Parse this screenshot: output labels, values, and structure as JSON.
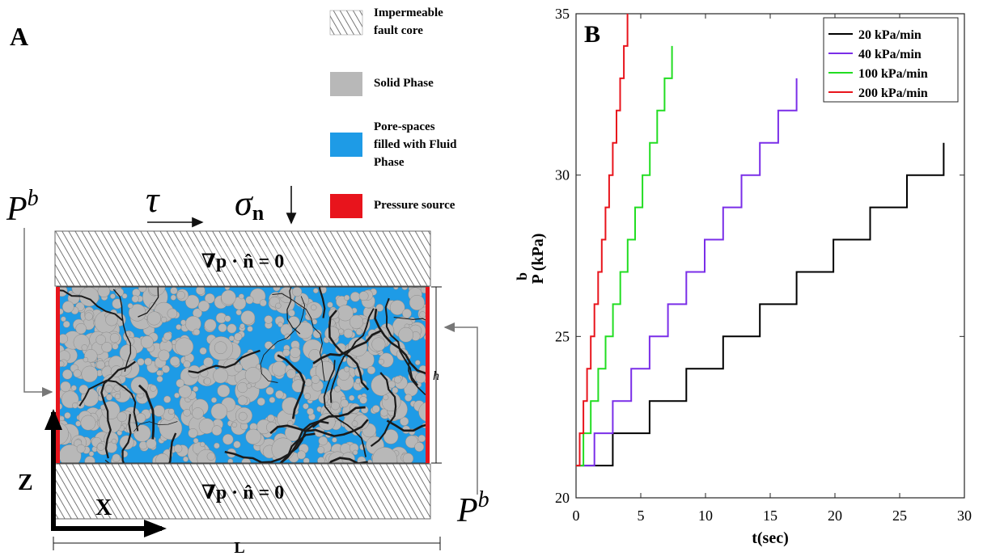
{
  "panel_a": {
    "label": "A",
    "legend": [
      {
        "lines": [
          "Impermeable",
          "fault core"
        ]
      },
      {
        "lines": [
          "Solid Phase"
        ]
      },
      {
        "lines": [
          "Pore-spaces",
          "filled with Fluid",
          "Phase"
        ]
      },
      {
        "lines": [
          "Pressure source"
        ]
      }
    ],
    "tau": "τ",
    "sigma": "σ",
    "sigma_sub": "n",
    "boundary_top": "∇p · n̂ = 0",
    "boundary_bottom": "∇p · n̂ = 0",
    "pb_left": "P",
    "pb_right": "P",
    "pb_sup": "b",
    "h": "h",
    "z": "Z",
    "x": "X",
    "L": "L",
    "colors": {
      "solid": "#b8b8b8",
      "fluid": "#1e9be6",
      "source": "#e8141c",
      "crack": "#1a1a1a"
    }
  },
  "chart_data": {
    "type": "line",
    "label": "B",
    "title": "",
    "xlabel": "t(sec)",
    "ylabel": "P",
    "ylabel_sup": "b",
    "ylabel_unit": "(kPa)",
    "xlim": [
      0,
      30
    ],
    "ylim": [
      20,
      35
    ],
    "xticks": [
      0,
      5,
      10,
      15,
      20,
      25,
      30
    ],
    "yticks": [
      20,
      25,
      30,
      35
    ],
    "grid": false,
    "legend_position": "top-right",
    "series": [
      {
        "name": "20 kPa/min",
        "color": "#000000",
        "start": 21,
        "end": 31,
        "dt": 2.84
      },
      {
        "name": "40 kPa/min",
        "color": "#7a2ee8",
        "start": 21,
        "end": 33,
        "dt": 1.42
      },
      {
        "name": "100 kPa/min",
        "color": "#22dd22",
        "start": 21,
        "end": 34,
        "dt": 0.57
      },
      {
        "name": "200 kPa/min",
        "color": "#e8141c",
        "start": 21,
        "end": 35,
        "dt": 0.284
      }
    ]
  }
}
